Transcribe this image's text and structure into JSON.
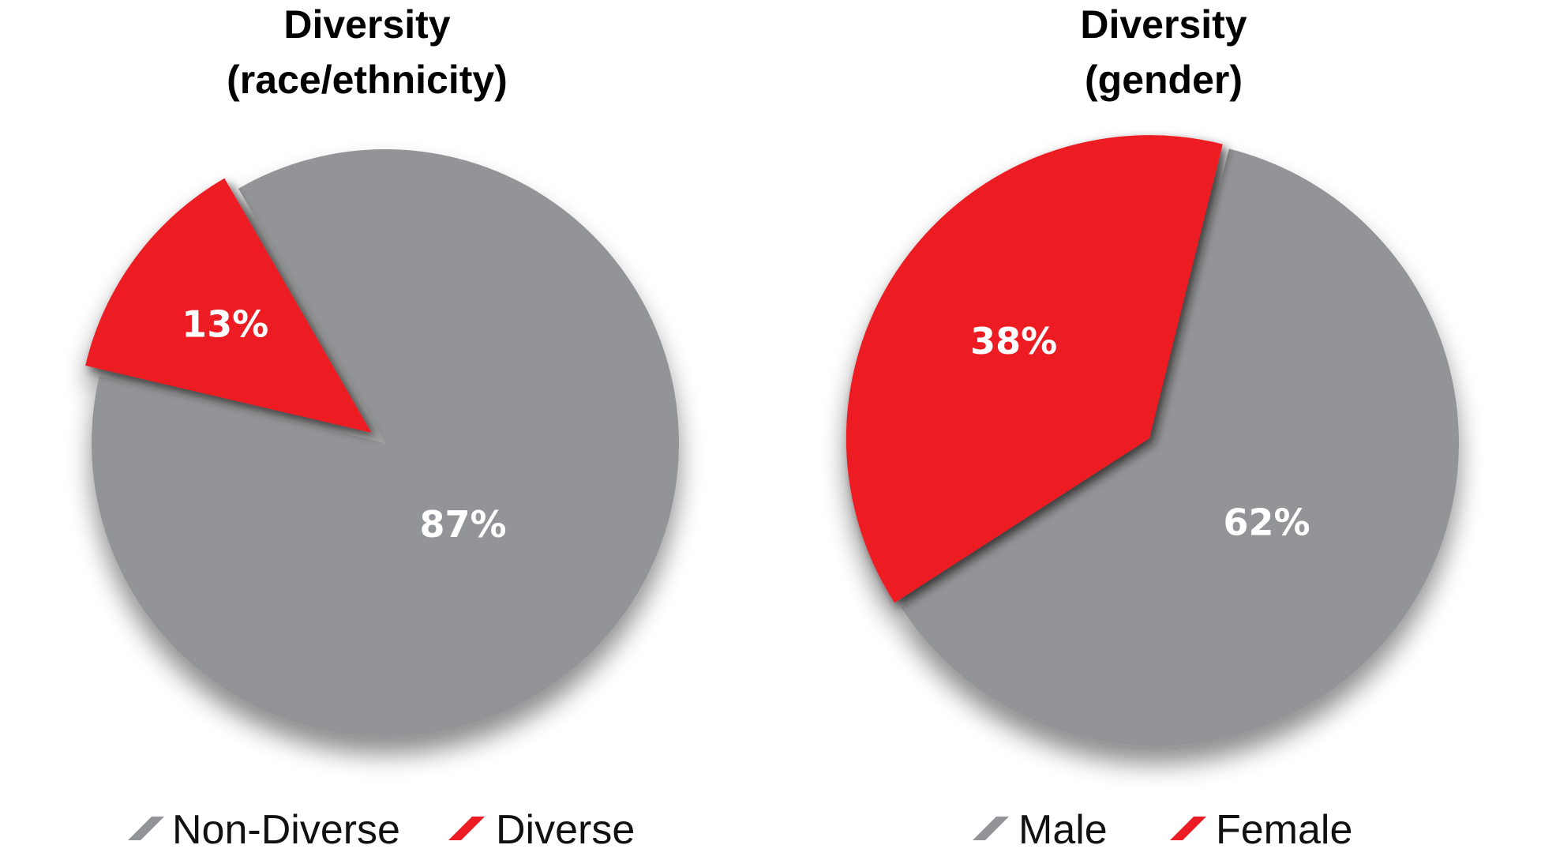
{
  "chart_data": [
    {
      "type": "pie",
      "title": [
        "Diversity",
        "(race/ethnicity)"
      ],
      "slices": [
        {
          "label": "Non-Diverse",
          "value": 87,
          "data_label": "87%",
          "color": "#939497"
        },
        {
          "label": "Diverse",
          "value": 13,
          "data_label": "13%",
          "color": "#ed1c24"
        }
      ],
      "exploded": "Diverse",
      "legend": "bottom"
    },
    {
      "type": "pie",
      "title": [
        "Diversity",
        "(gender)"
      ],
      "slices": [
        {
          "label": "Male",
          "value": 62,
          "data_label": "62%",
          "color": "#939497"
        },
        {
          "label": "Female",
          "value": 38,
          "data_label": "38%",
          "color": "#ed1c24"
        }
      ],
      "exploded": "Female",
      "legend": "bottom"
    }
  ]
}
